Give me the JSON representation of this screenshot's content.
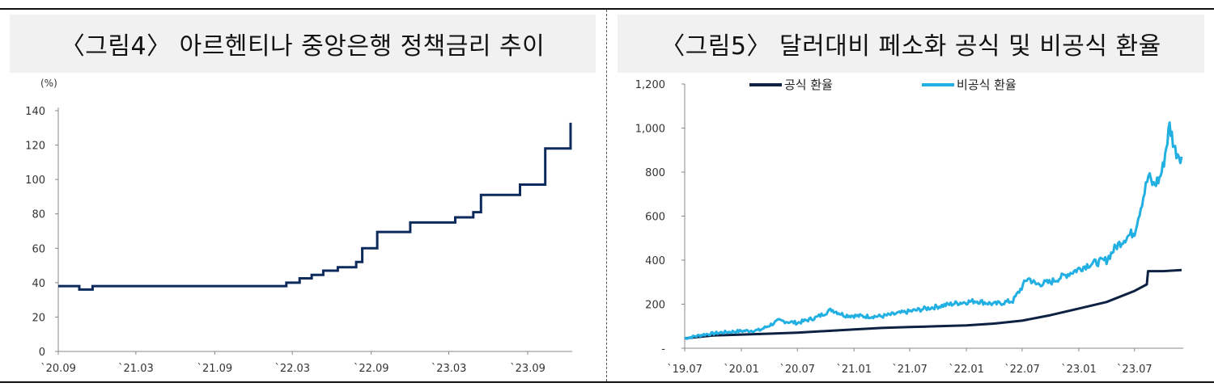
{
  "chart_data": [
    {
      "type": "line",
      "title": "〈그림4〉 아르헨티나 중앙은행 정책금리 추이",
      "ylabel": "(%)",
      "ylim": [
        0,
        140
      ],
      "yticks": [
        "0",
        "20",
        "40",
        "60",
        "80",
        "100",
        "120",
        "140"
      ],
      "xticks": [
        "`20.09",
        "`21.03",
        "`21.09",
        "`22.03",
        "`22.09",
        "`23.03",
        "`23.09"
      ],
      "grid": false,
      "color": "#0d2a5c",
      "series": [
        {
          "step": true,
          "x": [
            "2020-09-01",
            "2020-10-10",
            "2020-10-20",
            "2020-11-20",
            "2021-04-01",
            "2021-09-01",
            "2022-01-05",
            "2022-02-15",
            "2022-03-18",
            "2022-04-15",
            "2022-05-12",
            "2022-06-15",
            "2022-07-28",
            "2022-08-11",
            "2022-09-15",
            "2022-12-01",
            "2023-03-16",
            "2023-04-27",
            "2023-05-15",
            "2023-08-14",
            "2023-10-12",
            "2023-12-10"
          ],
          "values": [
            38,
            38,
            36,
            38,
            38,
            38,
            38,
            40,
            42.5,
            44.5,
            47,
            49,
            52,
            60,
            69.5,
            75,
            78,
            81,
            91,
            97,
            118,
            133
          ]
        }
      ]
    },
    {
      "type": "line",
      "title": "〈그림5〉 달러대비 페소화 공식 및 비공식 환율",
      "ylim": [
        0,
        1200
      ],
      "yticks": [
        "-",
        "200",
        "400",
        "600",
        "800",
        "1,000",
        "1,200"
      ],
      "xticks": [
        "`19.07",
        "`20.01",
        "`20.07",
        "`21.01",
        "`21.07",
        "`22.01",
        "`22.07",
        "`23.01",
        "`23.07"
      ],
      "grid": false,
      "legend": "top",
      "series": [
        {
          "name": "공식 환율",
          "color": "#0d2142",
          "x": [
            "2019-07-01",
            "2019-10-01",
            "2020-01-01",
            "2020-04-01",
            "2020-07-01",
            "2020-10-01",
            "2021-01-01",
            "2021-04-01",
            "2021-07-01",
            "2021-10-01",
            "2022-01-01",
            "2022-04-01",
            "2022-07-01",
            "2022-10-01",
            "2023-01-01",
            "2023-04-01",
            "2023-07-01",
            "2023-08-10",
            "2023-08-14",
            "2023-10-01",
            "2023-12-01"
          ],
          "values": [
            45,
            58,
            62,
            66,
            71,
            78,
            85,
            92,
            96,
            100,
            104,
            112,
            125,
            150,
            180,
            210,
            260,
            290,
            350,
            350,
            355
          ]
        },
        {
          "name": "비공식 환율",
          "color": "#22b0e2",
          "x": [
            "2019-07-01",
            "2019-09-01",
            "2019-11-01",
            "2020-01-01",
            "2020-03-01",
            "2020-05-01",
            "2020-07-01",
            "2020-09-01",
            "2020-10-20",
            "2020-12-01",
            "2021-02-01",
            "2021-04-01",
            "2021-06-01",
            "2021-08-01",
            "2021-10-01",
            "2021-12-01",
            "2022-02-01",
            "2022-04-01",
            "2022-06-01",
            "2022-07-20",
            "2022-08-15",
            "2022-10-01",
            "2022-12-01",
            "2023-02-01",
            "2023-04-01",
            "2023-05-01",
            "2023-06-01",
            "2023-07-01",
            "2023-08-15",
            "2023-09-01",
            "2023-09-20",
            "2023-10-01",
            "2023-10-23",
            "2023-11-10",
            "2023-12-01"
          ],
          "values": [
            45,
            62,
            72,
            78,
            82,
            125,
            115,
            140,
            175,
            150,
            145,
            145,
            160,
            175,
            190,
            205,
            215,
            200,
            215,
            320,
            290,
            300,
            340,
            380,
            400,
            460,
            500,
            530,
            780,
            740,
            770,
            820,
            1010,
            900,
            870
          ]
        }
      ]
    }
  ]
}
